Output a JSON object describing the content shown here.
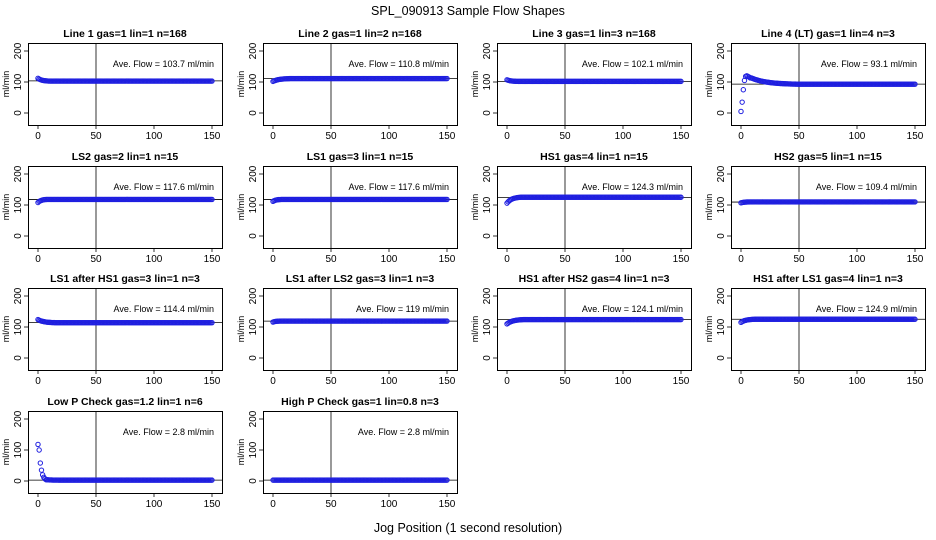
{
  "title": "SPL_090913  Sample Flow Shapes",
  "xlabel": "Jog Position (1 second resolution)",
  "colors": {
    "points": "#1f1fe0",
    "lines": "#000000"
  },
  "chart_data": [
    {
      "type": "scatter",
      "title": "Line 1 gas=1 lin=1 n=168",
      "ylabel": "ml/min",
      "annotation": "Ave. Flow =  103.7  ml/min",
      "mean": 103.7,
      "xlim": [
        0,
        150
      ],
      "ylim": [
        0,
        200
      ],
      "xticks": [
        0,
        50,
        100,
        150
      ],
      "yticks": [
        0,
        100,
        200
      ],
      "vline": 50,
      "shape": {
        "type": "decay",
        "start": 112,
        "end": 103,
        "len": 10
      }
    },
    {
      "type": "scatter",
      "title": "Line 2 gas=1 lin=2 n=168",
      "ylabel": "ml/min",
      "annotation": "Ave. Flow =  110.8  ml/min",
      "mean": 110.8,
      "xlim": [
        0,
        150
      ],
      "ylim": [
        0,
        200
      ],
      "xticks": [
        0,
        50,
        100,
        150
      ],
      "yticks": [
        0,
        100,
        200
      ],
      "vline": 50,
      "shape": {
        "type": "rise",
        "start": 102,
        "end": 111,
        "len": 15
      }
    },
    {
      "type": "scatter",
      "title": "Line 3 gas=1 lin=3 n=168",
      "ylabel": "ml/min",
      "annotation": "Ave. Flow =  102.1  ml/min",
      "mean": 102.1,
      "xlim": [
        0,
        150
      ],
      "ylim": [
        0,
        200
      ],
      "xticks": [
        0,
        50,
        100,
        150
      ],
      "yticks": [
        0,
        100,
        200
      ],
      "vline": 50,
      "shape": {
        "type": "decay",
        "start": 107,
        "end": 102,
        "len": 10
      }
    },
    {
      "type": "scatter",
      "title": "Line 4 (LT) gas=1 lin=4 n=3",
      "ylabel": "ml/min",
      "annotation": "Ave. Flow =  93.1  ml/min",
      "mean": 93.1,
      "xlim": [
        0,
        150
      ],
      "ylim": [
        0,
        200
      ],
      "xticks": [
        0,
        50,
        100,
        150
      ],
      "yticks": [
        0,
        100,
        200
      ],
      "vline": 50,
      "shape": {
        "type": "overshoot",
        "head": [
          5,
          35,
          75,
          105,
          118,
          120,
          118,
          116,
          113
        ],
        "end": 93,
        "len": 40
      }
    },
    {
      "type": "scatter",
      "title": "LS2 gas=2 lin=1 n=15",
      "ylabel": "ml/min",
      "annotation": "Ave. Flow =  117.6  ml/min",
      "mean": 117.6,
      "xlim": [
        0,
        150
      ],
      "ylim": [
        0,
        200
      ],
      "xticks": [
        0,
        50,
        100,
        150
      ],
      "yticks": [
        0,
        100,
        200
      ],
      "vline": 50,
      "shape": {
        "type": "rise",
        "start": 108,
        "end": 118,
        "len": 8
      }
    },
    {
      "type": "scatter",
      "title": "LS1 gas=3 lin=1 n=15",
      "ylabel": "ml/min",
      "annotation": "Ave. Flow =  117.6  ml/min",
      "mean": 117.6,
      "xlim": [
        0,
        150
      ],
      "ylim": [
        0,
        200
      ],
      "xticks": [
        0,
        50,
        100,
        150
      ],
      "yticks": [
        0,
        100,
        200
      ],
      "vline": 50,
      "shape": {
        "type": "rise",
        "start": 112,
        "end": 118,
        "len": 8
      }
    },
    {
      "type": "scatter",
      "title": "HS1 gas=4 lin=1 n=15",
      "ylabel": "ml/min",
      "annotation": "Ave. Flow =  124.3  ml/min",
      "mean": 124.3,
      "xlim": [
        0,
        150
      ],
      "ylim": [
        0,
        200
      ],
      "xticks": [
        0,
        50,
        100,
        150
      ],
      "yticks": [
        0,
        100,
        200
      ],
      "vline": 50,
      "shape": {
        "type": "rise",
        "start": 106,
        "end": 125,
        "len": 12
      }
    },
    {
      "type": "scatter",
      "title": "HS2 gas=5 lin=1 n=15",
      "ylabel": "ml/min",
      "annotation": "Ave. Flow =  109.4  ml/min",
      "mean": 109.4,
      "xlim": [
        0,
        150
      ],
      "ylim": [
        0,
        200
      ],
      "xticks": [
        0,
        50,
        100,
        150
      ],
      "yticks": [
        0,
        100,
        200
      ],
      "vline": 50,
      "shape": {
        "type": "rise",
        "start": 107,
        "end": 110,
        "len": 8
      }
    },
    {
      "type": "scatter",
      "title": "LS1 after HS1 gas=3 lin=1 n=3",
      "ylabel": "ml/min",
      "annotation": "Ave. Flow =  114.4  ml/min",
      "mean": 114.4,
      "xlim": [
        0,
        150
      ],
      "ylim": [
        0,
        200
      ],
      "xticks": [
        0,
        50,
        100,
        150
      ],
      "yticks": [
        0,
        100,
        200
      ],
      "vline": 50,
      "shape": {
        "type": "decay",
        "start": 124,
        "end": 114,
        "len": 15
      }
    },
    {
      "type": "scatter",
      "title": "LS1 after LS2 gas=3 lin=1 n=3",
      "ylabel": "ml/min",
      "annotation": "Ave. Flow =  119  ml/min",
      "mean": 119,
      "xlim": [
        0,
        150
      ],
      "ylim": [
        0,
        200
      ],
      "xticks": [
        0,
        50,
        100,
        150
      ],
      "yticks": [
        0,
        100,
        200
      ],
      "vline": 50,
      "shape": {
        "type": "rise",
        "start": 116,
        "end": 119,
        "len": 6
      }
    },
    {
      "type": "scatter",
      "title": "HS1 after HS2 gas=4 lin=1 n=3",
      "ylabel": "ml/min",
      "annotation": "Ave. Flow =  124.1  ml/min",
      "mean": 124.1,
      "xlim": [
        0,
        150
      ],
      "ylim": [
        0,
        200
      ],
      "xticks": [
        0,
        50,
        100,
        150
      ],
      "yticks": [
        0,
        100,
        200
      ],
      "vline": 50,
      "shape": {
        "type": "rise",
        "start": 110,
        "end": 124,
        "len": 15
      }
    },
    {
      "type": "scatter",
      "title": "HS1 after LS1 gas=4 lin=1 n=3",
      "ylabel": "ml/min",
      "annotation": "Ave. Flow =  124.9  ml/min",
      "mean": 124.9,
      "xlim": [
        0,
        150
      ],
      "ylim": [
        0,
        200
      ],
      "xticks": [
        0,
        50,
        100,
        150
      ],
      "yticks": [
        0,
        100,
        200
      ],
      "vline": 50,
      "shape": {
        "type": "rise",
        "start": 115,
        "end": 125,
        "len": 12
      }
    },
    {
      "type": "scatter",
      "title": "Low P Check gas=1.2 lin=1 n=6",
      "ylabel": "ml/min",
      "annotation": "Ave. Flow =  2.8  ml/min",
      "mean": 2.8,
      "xlim": [
        0,
        150
      ],
      "ylim": [
        0,
        200
      ],
      "xticks": [
        0,
        50,
        100,
        150
      ],
      "yticks": [
        0,
        100,
        200
      ],
      "vline": 50,
      "shape": {
        "type": "drop",
        "head": [
          118,
          100,
          58,
          35,
          20,
          12,
          7,
          4
        ],
        "end": 2.8,
        "len": 12
      }
    },
    {
      "type": "scatter",
      "title": "High P Check gas=1 lin=0.8 n=3",
      "ylabel": "ml/min",
      "annotation": "Ave. Flow =  2.8  ml/min",
      "mean": 2.8,
      "xlim": [
        0,
        150
      ],
      "ylim": [
        0,
        200
      ],
      "xticks": [
        0,
        50,
        100,
        150
      ],
      "yticks": [
        0,
        100,
        200
      ],
      "vline": 50,
      "shape": {
        "type": "flat",
        "end": 2.8
      }
    }
  ]
}
